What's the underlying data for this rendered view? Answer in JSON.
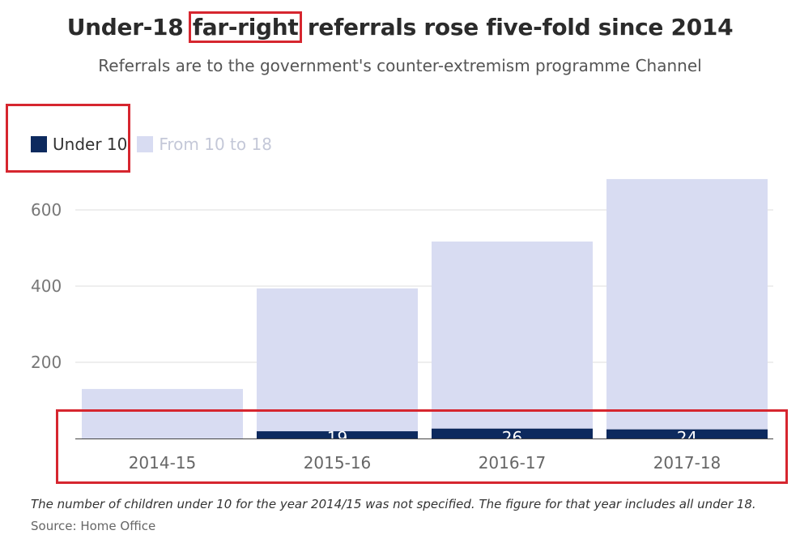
{
  "title": {
    "prefix": "Under-18 ",
    "highlight": "far-right",
    "suffix": " referrals rose five-fold since 2014"
  },
  "subtitle": "Referrals are to the government's counter-extremism programme Channel",
  "footnote": "The number of children under 10 for the year 2014/15 was not specified. The figure for that year includes all under 18.",
  "source": "Source: Home Office",
  "colors": {
    "under10": "#0d2a5e",
    "from10to18": "#d8dcf2",
    "highlight_box": "#d6262f"
  },
  "chart_data": {
    "type": "bar",
    "stacked": true,
    "categories": [
      "2014-15",
      "2015-16",
      "2016-17",
      "2017-18"
    ],
    "series": [
      {
        "name": "Under 10",
        "values": [
          null,
          19,
          26,
          24
        ]
      },
      {
        "name": "From 10 to 18",
        "values": [
          130,
          375,
          491,
          657
        ]
      }
    ],
    "data_labels": [
      "",
      "19",
      "26",
      "24"
    ],
    "y_ticks": [
      "200",
      "400",
      "600"
    ],
    "ylim": [
      0,
      700
    ],
    "grid": true,
    "legend": "top-left"
  }
}
